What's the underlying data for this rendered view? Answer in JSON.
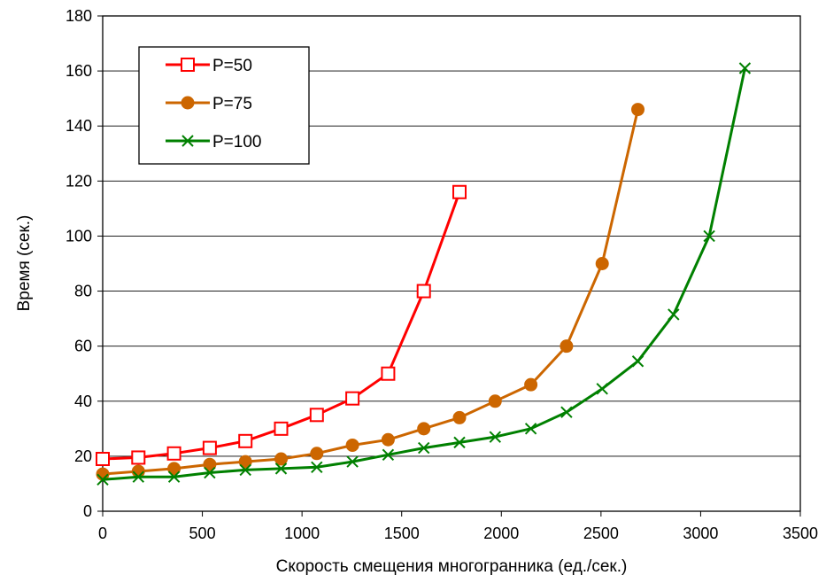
{
  "chart_data": {
    "type": "line",
    "title": "",
    "xlabel": "Скорость смещения многогранника (ед./сек.)",
    "ylabel": "Время (сек.)",
    "xlim": [
      0,
      3500
    ],
    "ylim": [
      0,
      180
    ],
    "xticks": [
      0,
      500,
      1000,
      1500,
      2000,
      2500,
      3000,
      3500
    ],
    "yticks": [
      0,
      20,
      40,
      60,
      80,
      100,
      120,
      140,
      160,
      180
    ],
    "grid": "horizontal",
    "legend_position": "top-left",
    "series": [
      {
        "name": "P=50",
        "color": "#ff0000",
        "marker": "square-open",
        "points": [
          [
            0,
            19
          ],
          [
            179,
            19.5
          ],
          [
            358,
            21
          ],
          [
            537,
            23
          ],
          [
            716,
            25.5
          ],
          [
            895,
            30
          ],
          [
            1074,
            35
          ],
          [
            1253,
            41
          ],
          [
            1432,
            50
          ],
          [
            1611,
            80
          ],
          [
            1790,
            116
          ]
        ]
      },
      {
        "name": "P=75",
        "color": "#cc6600",
        "marker": "circle-filled",
        "points": [
          [
            0,
            13.5
          ],
          [
            179,
            14.5
          ],
          [
            358,
            15.5
          ],
          [
            537,
            17
          ],
          [
            716,
            18
          ],
          [
            895,
            19
          ],
          [
            1074,
            21
          ],
          [
            1253,
            24
          ],
          [
            1432,
            26
          ],
          [
            1611,
            30
          ],
          [
            1790,
            34
          ],
          [
            1969,
            40
          ],
          [
            2148,
            46
          ],
          [
            2327,
            60
          ],
          [
            2506,
            90
          ],
          [
            2685,
            146
          ]
        ]
      },
      {
        "name": "P=100",
        "color": "#008000",
        "marker": "x",
        "points": [
          [
            0,
            11.5
          ],
          [
            179,
            12.5
          ],
          [
            358,
            12.5
          ],
          [
            537,
            14
          ],
          [
            716,
            15
          ],
          [
            895,
            15.5
          ],
          [
            1074,
            16
          ],
          [
            1253,
            18
          ],
          [
            1432,
            20.5
          ],
          [
            1611,
            23
          ],
          [
            1790,
            25
          ],
          [
            1969,
            27
          ],
          [
            2148,
            30
          ],
          [
            2327,
            36
          ],
          [
            2506,
            44.5
          ],
          [
            2685,
            54.5
          ],
          [
            2864,
            71.5
          ],
          [
            3043,
            100
          ],
          [
            3222,
            161
          ]
        ]
      }
    ]
  }
}
